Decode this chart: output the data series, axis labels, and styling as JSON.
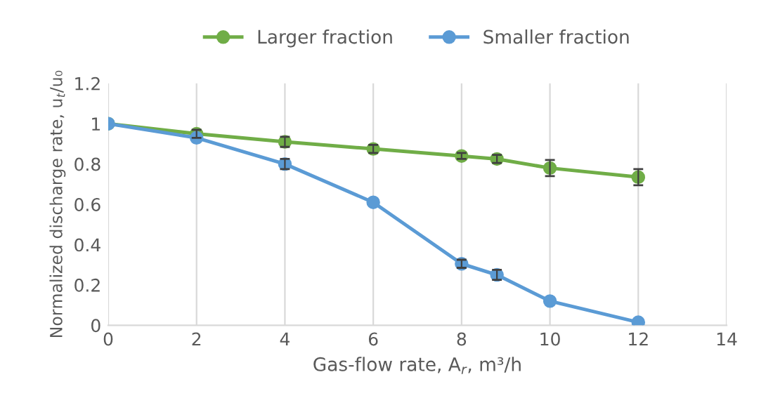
{
  "chart_data": {
    "type": "line",
    "xlabel": "Gas-flow rate, A$_{r}$, m³/h",
    "ylabel": "Normalized discharge rate, u$_{t}$/u₀",
    "xlim": [
      0,
      14
    ],
    "xticks": [
      0,
      2,
      4,
      6,
      8,
      10,
      12,
      14
    ],
    "ylim": [
      0,
      1.2
    ],
    "yticks": [
      0,
      0.2,
      0.4,
      0.6,
      0.8,
      1,
      1.2
    ],
    "grid": "x",
    "legend": "top",
    "marker": "circle",
    "line_style": "solid",
    "series": [
      {
        "name": "Larger fraction",
        "color": "#70ad47",
        "x": [
          0,
          2,
          4,
          6,
          8,
          8.8,
          10,
          12
        ],
        "values": [
          1,
          0.95,
          0.91,
          0.875,
          0.84,
          0.825,
          0.78,
          0.735
        ],
        "errors": [
          null,
          0.02,
          0.025,
          0.02,
          0.015,
          0.02,
          0.04,
          0.04
        ]
      },
      {
        "name": "Smaller fraction",
        "color": "#5b9bd5",
        "x": [
          0,
          2,
          4,
          6,
          8,
          8.8,
          10,
          12
        ],
        "values": [
          1,
          0.93,
          0.8,
          0.61,
          0.305,
          0.25,
          0.12,
          0.015
        ],
        "errors": [
          null,
          null,
          0.025,
          null,
          0.02,
          0.025,
          null,
          null
        ]
      }
    ]
  }
}
